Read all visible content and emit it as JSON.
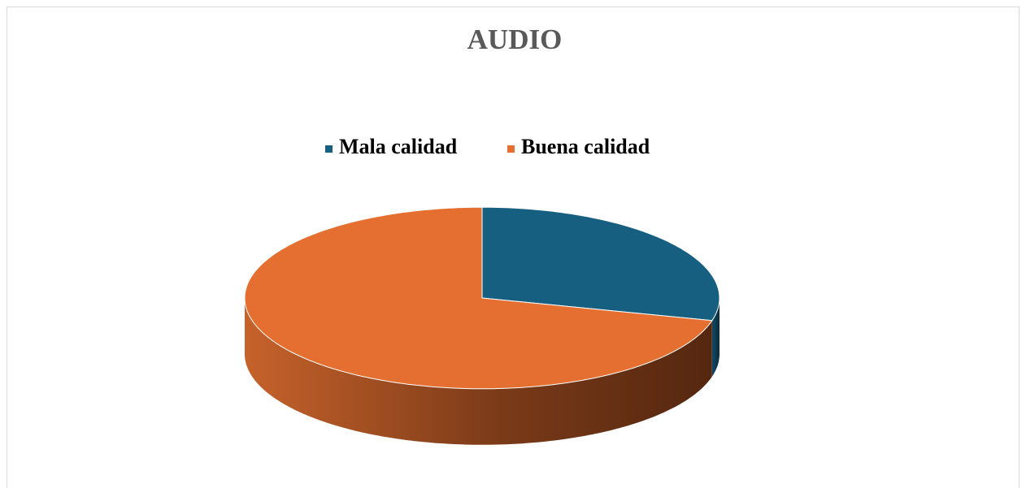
{
  "chart_data": {
    "type": "pie",
    "title": "AUDIO",
    "categories": [
      "Mala calidad",
      "Buena calidad"
    ],
    "values": [
      29,
      71
    ],
    "colors": [
      "#175f80",
      "#e46f30"
    ],
    "legend": "top"
  }
}
